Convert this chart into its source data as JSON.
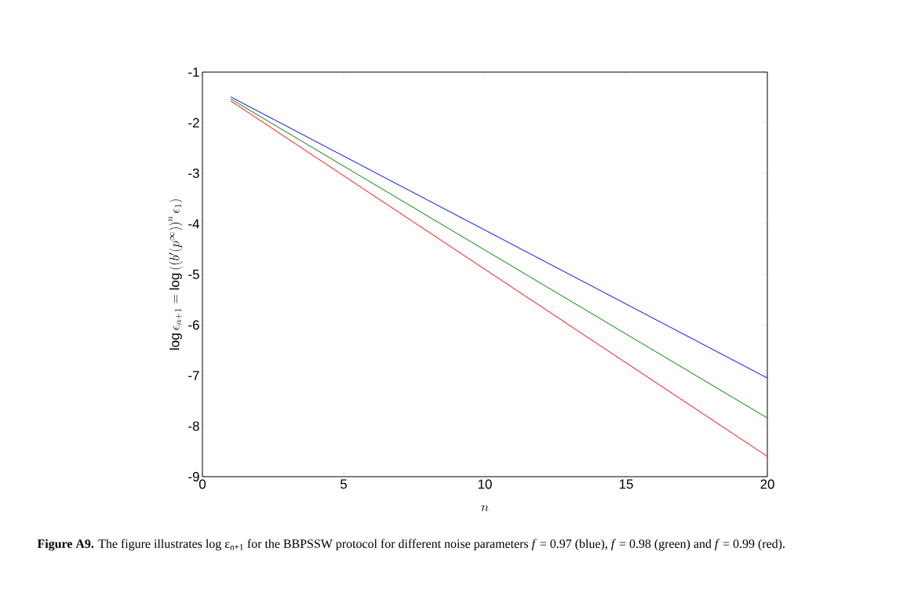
{
  "chart_data": {
    "type": "line",
    "xlabel": "n",
    "ylabel": "\\log \\epsilon_{n+1} = \\log \\left( \\left( b'(p^{\\infty}) \\right)^{n} \\epsilon_1 \\right)",
    "annotations": [
      "**Figure A9.** The figure illustrates log ε$_{n+1}$ for the BBPSSW protocol for different noise parameters *f* = 0.97 (blue), *f* = 0.98 (green) and *f* = 0.99 (red)."
    ],
    "x": [
      1,
      20
    ],
    "series": [
      {
        "color": "#0000ff",
        "values": [
          -1.49,
          -7.05
        ]
      },
      {
        "color": "#008000",
        "values": [
          -1.53,
          -7.84
        ]
      },
      {
        "color": "#ff0000",
        "values": [
          -1.57,
          -8.6
        ]
      }
    ],
    "xlim": [
      0,
      20
    ],
    "ylim": [
      -9,
      -1
    ],
    "xticks": [
      0,
      5,
      10,
      15,
      20
    ],
    "yticks": [
      -9,
      -8,
      -7,
      -6,
      -5,
      -4,
      -3,
      -2,
      -1
    ],
    "marker": "none",
    "line_style": "solid"
  }
}
